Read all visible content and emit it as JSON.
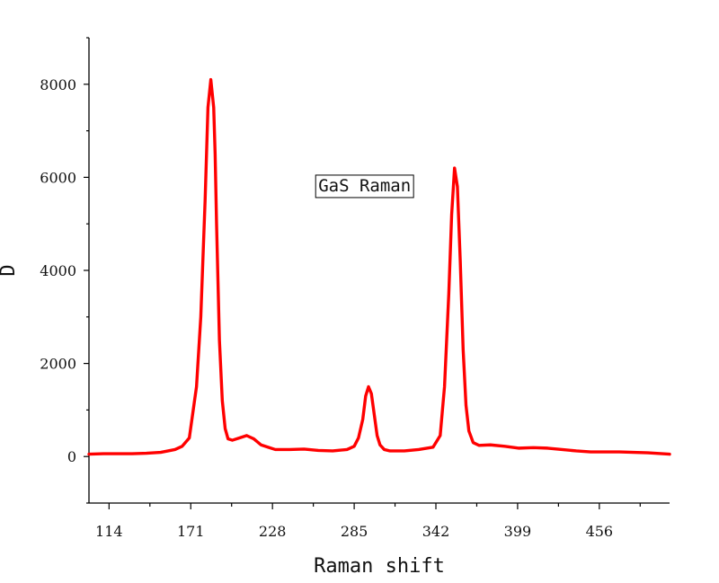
{
  "chart_data": {
    "type": "line",
    "title": "",
    "xlabel": "Raman shift",
    "ylabel": "D",
    "xlim": [
      100,
      505
    ],
    "ylim": [
      -1000,
      9000
    ],
    "x_ticks": [
      114,
      171,
      228,
      285,
      342,
      399,
      456
    ],
    "y_ticks": [
      0,
      2000,
      4000,
      6000,
      8000
    ],
    "grid": false,
    "annotations": [
      {
        "text": "GaS Raman",
        "x": 260,
        "y": 5700
      }
    ],
    "series": [
      {
        "color": "#ff0000",
        "x": [
          100,
          110,
          120,
          130,
          140,
          150,
          160,
          165,
          170,
          175,
          178,
          181,
          183,
          185,
          187,
          188,
          189,
          191,
          193,
          195,
          197,
          200,
          205,
          210,
          215,
          220,
          225,
          230,
          240,
          250,
          260,
          270,
          280,
          285,
          288,
          291,
          293,
          295,
          297,
          299,
          301,
          303,
          306,
          310,
          320,
          330,
          340,
          345,
          348,
          351,
          353,
          355,
          357,
          359,
          361,
          363,
          365,
          368,
          372,
          380,
          390,
          400,
          410,
          420,
          430,
          440,
          450,
          460,
          470,
          480,
          490,
          500,
          505
        ],
        "y": [
          50,
          60,
          60,
          60,
          70,
          90,
          150,
          220,
          400,
          1500,
          3000,
          5500,
          7500,
          8100,
          7500,
          6500,
          5000,
          2500,
          1200,
          600,
          380,
          350,
          400,
          450,
          380,
          250,
          200,
          150,
          150,
          160,
          130,
          120,
          150,
          220,
          400,
          800,
          1300,
          1500,
          1350,
          900,
          450,
          250,
          150,
          120,
          120,
          150,
          200,
          450,
          1500,
          3500,
          5200,
          6200,
          5800,
          4200,
          2300,
          1100,
          550,
          300,
          240,
          250,
          220,
          180,
          190,
          180,
          150,
          120,
          100,
          100,
          100,
          90,
          80,
          60,
          50
        ]
      }
    ]
  }
}
